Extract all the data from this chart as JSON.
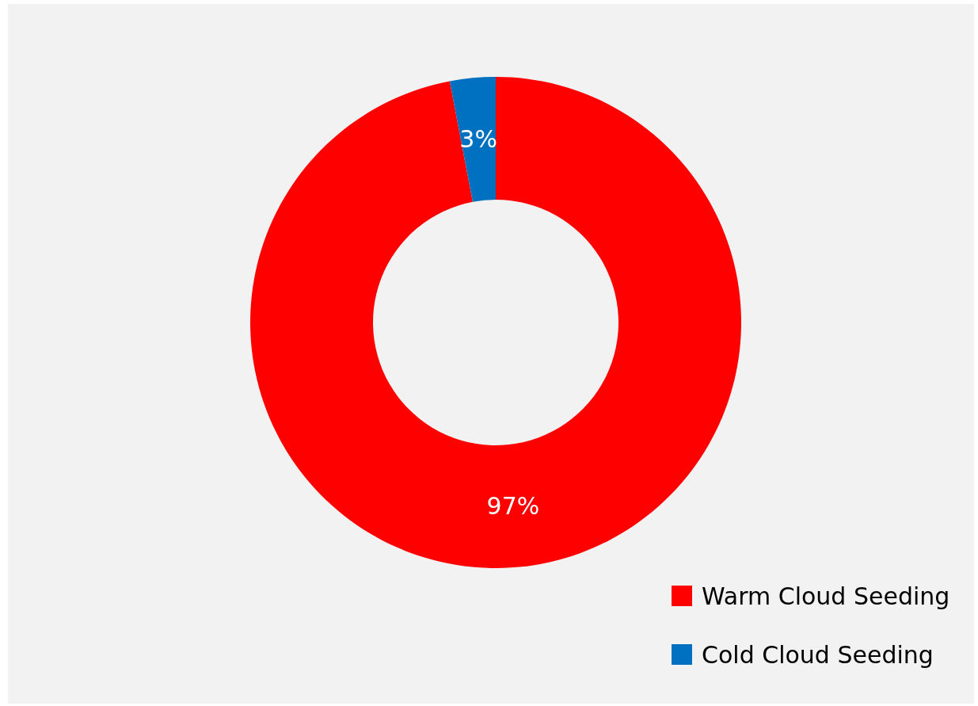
{
  "chart_data": {
    "type": "donut",
    "categories": [
      "Warm Cloud Seeding",
      "Cold Cloud Seeding"
    ],
    "values": [
      97,
      3
    ],
    "colors": [
      "#ff0000",
      "#0070c0"
    ],
    "value_labels": [
      "97%",
      "3%"
    ],
    "legend": "bottom right"
  }
}
